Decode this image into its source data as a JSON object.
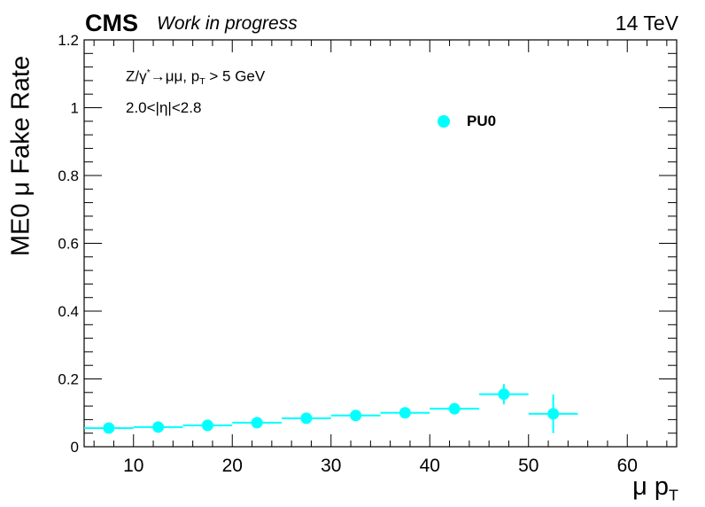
{
  "header": {
    "experiment": "CMS",
    "status": "Work in progress",
    "energy": "14 TeV"
  },
  "annotations": {
    "process": {
      "pre": "Z/γ",
      "sup": "*",
      "mid": "→μμ, p",
      "sub": "T",
      "post": " > 5 GeV"
    },
    "eta_range": "2.0<|η|<2.8"
  },
  "chart_data": {
    "type": "scatter",
    "xlabel": {
      "main": "μ p",
      "sub": "T"
    },
    "ylabel": "ME0 μ Fake Rate",
    "xlim": [
      5,
      65
    ],
    "ylim": [
      0,
      1.2
    ],
    "x_ticks": [
      10,
      20,
      30,
      40,
      50,
      60
    ],
    "y_ticks": [
      0,
      0.2,
      0.4,
      0.6,
      0.8,
      1,
      1.2
    ],
    "y_tick_labels": [
      "0",
      "0.2",
      "0.4",
      "0.6",
      "0.8",
      "1",
      "1.2"
    ],
    "grid": false,
    "legend": {
      "position": "top-right",
      "entries": [
        "PU0"
      ]
    },
    "series": [
      {
        "name": "PU0",
        "color": "#00ffff",
        "points": [
          {
            "x": 7.5,
            "xerr": 2.5,
            "y": 0.055,
            "yerr": 0.004
          },
          {
            "x": 12.5,
            "xerr": 2.5,
            "y": 0.058,
            "yerr": 0.004
          },
          {
            "x": 17.5,
            "xerr": 2.5,
            "y": 0.063,
            "yerr": 0.004
          },
          {
            "x": 22.5,
            "xerr": 2.5,
            "y": 0.071,
            "yerr": 0.005
          },
          {
            "x": 27.5,
            "xerr": 2.5,
            "y": 0.084,
            "yerr": 0.006
          },
          {
            "x": 32.5,
            "xerr": 2.5,
            "y": 0.092,
            "yerr": 0.007
          },
          {
            "x": 37.5,
            "xerr": 2.5,
            "y": 0.1,
            "yerr": 0.008
          },
          {
            "x": 42.5,
            "xerr": 2.5,
            "y": 0.112,
            "yerr": 0.011
          },
          {
            "x": 47.5,
            "xerr": 2.5,
            "y": 0.155,
            "yerr": 0.03
          },
          {
            "x": 52.5,
            "xerr": 2.5,
            "y": 0.097,
            "yerr": 0.057
          }
        ]
      }
    ]
  }
}
